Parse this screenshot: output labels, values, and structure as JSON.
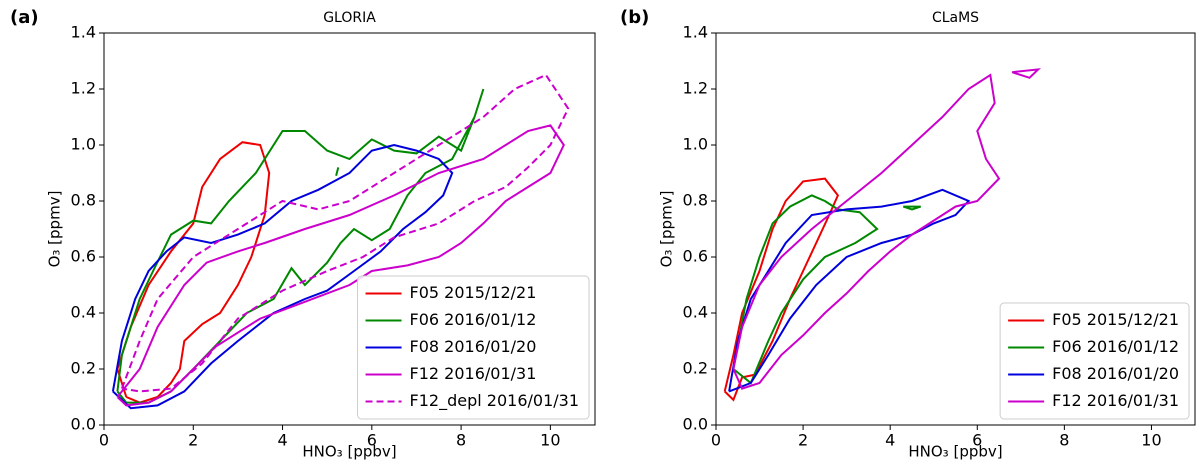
{
  "chart_data": [
    {
      "type": "line",
      "panel_label": "(a)",
      "title": "GLORIA",
      "x_label": "HNO₃ [ppbv]",
      "y_label": "O₃ [ppmv]",
      "xlim": [
        0,
        11
      ],
      "ylim": [
        0,
        1.4
      ],
      "xticks": [
        0,
        2,
        4,
        6,
        8,
        10
      ],
      "yticks": [
        {
          "value": 0,
          "label": "0.0"
        },
        {
          "value": 0.2,
          "label": "0.2"
        },
        {
          "value": 0.4,
          "label": "0.4"
        },
        {
          "value": 0.6,
          "label": "0.6"
        },
        {
          "value": 0.8,
          "label": "0.8"
        },
        {
          "value": 1.0,
          "label": "1.0"
        },
        {
          "value": 1.2,
          "label": "1.2"
        },
        {
          "value": 1.4,
          "label": "1.4"
        }
      ],
      "legend": "lower right",
      "series": [
        {
          "name": "F05 2015/12/21",
          "color": "#ee0000",
          "linestyle": "solid",
          "x": [
            0.5,
            0.3,
            0.6,
            1,
            1.5,
            2,
            2.2,
            2.6,
            3.1,
            3.5,
            3.7,
            3.6,
            3.3,
            3,
            2.6,
            2.2,
            1.8,
            1.7,
            1.5,
            1.2,
            0.8,
            0.5
          ],
          "values": [
            0.1,
            0.2,
            0.35,
            0.5,
            0.62,
            0.72,
            0.85,
            0.95,
            1.01,
            1.0,
            0.9,
            0.75,
            0.6,
            0.5,
            0.4,
            0.36,
            0.3,
            0.2,
            0.15,
            0.1,
            0.08,
            0.1
          ]
        },
        {
          "name": "F06 2016/01/12",
          "color": "#008800",
          "linestyle": "solid",
          "x": [
            0.3,
            0.4,
            0.8,
            1.1,
            1.5,
            2,
            2.4,
            2.8,
            3.4,
            4,
            4.5,
            5,
            5.5,
            6,
            6.5,
            7,
            7.5,
            8,
            8.3,
            8.5,
            8.3,
            7.8,
            7.2,
            6.8,
            6.4,
            6,
            5.6,
            5.3,
            5,
            4.5,
            4.2,
            3.8,
            3.2,
            2.6,
            2,
            1.5,
            1,
            0.5,
            0.3,
            null,
            5.2,
            5.25,
            5.2
          ],
          "values": [
            0.12,
            0.25,
            0.45,
            0.55,
            0.68,
            0.73,
            0.72,
            0.8,
            0.9,
            1.05,
            1.05,
            0.98,
            0.95,
            1.02,
            0.98,
            0.97,
            1.03,
            0.98,
            1.1,
            1.2,
            1.1,
            0.95,
            0.9,
            0.82,
            0.7,
            0.66,
            0.7,
            0.65,
            0.58,
            0.5,
            0.56,
            0.45,
            0.4,
            0.3,
            0.2,
            0.12,
            0.08,
            0.08,
            0.12,
            null,
            0.89,
            0.92,
            0.89
          ]
        },
        {
          "name": "F08 2016/01/20",
          "color": "#0000dd",
          "linestyle": "solid",
          "x": [
            0.2,
            0.4,
            0.7,
            1,
            1.4,
            1.8,
            2.4,
            3,
            3.6,
            4.2,
            4.8,
            5.5,
            6,
            6.5,
            7,
            7.5,
            7.8,
            7.6,
            7.2,
            6.7,
            6.2,
            5.6,
            5,
            4.5,
            3.8,
            3,
            2.4,
            1.8,
            1.2,
            0.6,
            0.2
          ],
          "values": [
            0.12,
            0.3,
            0.45,
            0.55,
            0.62,
            0.67,
            0.65,
            0.68,
            0.72,
            0.8,
            0.84,
            0.9,
            0.98,
            1.0,
            0.98,
            0.95,
            0.9,
            0.82,
            0.76,
            0.7,
            0.62,
            0.55,
            0.48,
            0.45,
            0.4,
            0.3,
            0.22,
            0.12,
            0.07,
            0.06,
            0.12
          ]
        },
        {
          "name": "F12 2016/01/31",
          "color": "#cc00cc",
          "linestyle": "solid",
          "x": [
            0.3,
            0.8,
            1.2,
            1.8,
            2.3,
            3,
            3.6,
            4.5,
            5.5,
            6.5,
            7.5,
            8.5,
            9.5,
            10,
            10.3,
            10,
            9.5,
            9,
            8.5,
            8,
            7.5,
            6.8,
            6,
            5.5,
            4.5,
            3.5,
            2.5,
            2,
            1.5,
            1,
            0.5,
            0.3
          ],
          "values": [
            0.1,
            0.2,
            0.35,
            0.5,
            0.58,
            0.62,
            0.65,
            0.7,
            0.75,
            0.82,
            0.9,
            0.95,
            1.05,
            1.07,
            1.0,
            0.9,
            0.85,
            0.8,
            0.72,
            0.65,
            0.6,
            0.57,
            0.55,
            0.5,
            0.44,
            0.38,
            0.28,
            0.2,
            0.12,
            0.08,
            0.07,
            0.1
          ]
        },
        {
          "name": "F12_depl 2016/01/31",
          "color": "#cc00cc",
          "linestyle": "dashed",
          "x": [
            0.4,
            0.8,
            1.2,
            2,
            3,
            4,
            4.8,
            5.5,
            6.5,
            7.5,
            8.5,
            9.2,
            9.9,
            10.4,
            10,
            9.5,
            9,
            8.3,
            7.5,
            6.5,
            5.8,
            5,
            4,
            3,
            2.2,
            1.5,
            0.8,
            0.4
          ],
          "values": [
            0.13,
            0.3,
            0.45,
            0.6,
            0.7,
            0.8,
            0.77,
            0.8,
            0.9,
            1.0,
            1.1,
            1.2,
            1.25,
            1.13,
            1.0,
            0.92,
            0.85,
            0.8,
            0.72,
            0.67,
            0.6,
            0.55,
            0.48,
            0.38,
            0.22,
            0.13,
            0.12,
            0.13
          ]
        }
      ]
    },
    {
      "type": "line",
      "panel_label": "(b)",
      "title": "CLaMS",
      "x_label": "HNO₃ [ppbv]",
      "y_label": "O₃ [ppmv]",
      "xlim": [
        0,
        11
      ],
      "ylim": [
        0,
        1.4
      ],
      "xticks": [
        0,
        2,
        4,
        6,
        8,
        10
      ],
      "yticks": [
        {
          "value": 0,
          "label": "0.0"
        },
        {
          "value": 0.2,
          "label": "0.2"
        },
        {
          "value": 0.4,
          "label": "0.4"
        },
        {
          "value": 0.6,
          "label": "0.6"
        },
        {
          "value": 0.8,
          "label": "0.8"
        },
        {
          "value": 1.0,
          "label": "1.0"
        },
        {
          "value": 1.2,
          "label": "1.2"
        },
        {
          "value": 1.4,
          "label": "1.4"
        }
      ],
      "legend": "lower right",
      "series": [
        {
          "name": "F05 2015/12/21",
          "color": "#ee0000",
          "linestyle": "solid",
          "x": [
            0.2,
            0.4,
            0.6,
            1,
            1.3,
            1.6,
            2,
            2.5,
            2.8,
            2.6,
            2.3,
            2,
            1.7,
            1.3,
            0.9,
            0.6,
            0.4,
            0.2
          ],
          "values": [
            0.12,
            0.25,
            0.4,
            0.55,
            0.7,
            0.8,
            0.87,
            0.88,
            0.82,
            0.75,
            0.65,
            0.55,
            0.45,
            0.3,
            0.18,
            0.17,
            0.09,
            0.12
          ]
        },
        {
          "name": "F06 2016/01/12",
          "color": "#008800",
          "linestyle": "solid",
          "x": [
            0.4,
            0.7,
            1,
            1.3,
            1.7,
            2.2,
            2.5,
            2.8,
            3.3,
            3.7,
            3.2,
            2.5,
            2,
            1.5,
            1.2,
            0.8,
            0.4,
            null,
            4.3,
            4.7,
            4.5,
            4.3
          ],
          "values": [
            0.2,
            0.45,
            0.6,
            0.72,
            0.78,
            0.82,
            0.8,
            0.77,
            0.76,
            0.7,
            0.65,
            0.6,
            0.52,
            0.4,
            0.3,
            0.15,
            0.2,
            null,
            0.78,
            0.78,
            0.77,
            0.78
          ]
        },
        {
          "name": "F08 2016/01/20",
          "color": "#0000dd",
          "linestyle": "solid",
          "x": [
            0.3,
            0.5,
            0.8,
            1.2,
            1.6,
            2.2,
            3,
            3.8,
            4.5,
            5.2,
            5.8,
            5.5,
            5,
            4.5,
            3.8,
            3,
            2.3,
            1.7,
            1.2,
            0.8,
            0.3
          ],
          "values": [
            0.12,
            0.3,
            0.45,
            0.55,
            0.65,
            0.75,
            0.77,
            0.78,
            0.8,
            0.84,
            0.8,
            0.75,
            0.72,
            0.68,
            0.65,
            0.6,
            0.5,
            0.38,
            0.25,
            0.15,
            0.12
          ]
        },
        {
          "name": "F12 2016/01/31",
          "color": "#cc00cc",
          "linestyle": "solid",
          "x": [
            0.4,
            0.6,
            1,
            1.5,
            2.2,
            3,
            3.8,
            4.5,
            5.2,
            5.8,
            6.3,
            6.4,
            6,
            6.2,
            6.5,
            6,
            5.5,
            5,
            4.5,
            4,
            3.5,
            3,
            2.5,
            2,
            1.5,
            1,
            0.6,
            0.4,
            null,
            6.8,
            7.4,
            7.2,
            6.8
          ],
          "values": [
            0.2,
            0.35,
            0.5,
            0.6,
            0.7,
            0.8,
            0.9,
            1.0,
            1.1,
            1.2,
            1.25,
            1.15,
            1.05,
            0.95,
            0.88,
            0.8,
            0.78,
            0.73,
            0.68,
            0.62,
            0.55,
            0.47,
            0.4,
            0.32,
            0.25,
            0.15,
            0.13,
            0.2,
            null,
            1.26,
            1.27,
            1.24,
            1.26
          ]
        }
      ]
    }
  ]
}
